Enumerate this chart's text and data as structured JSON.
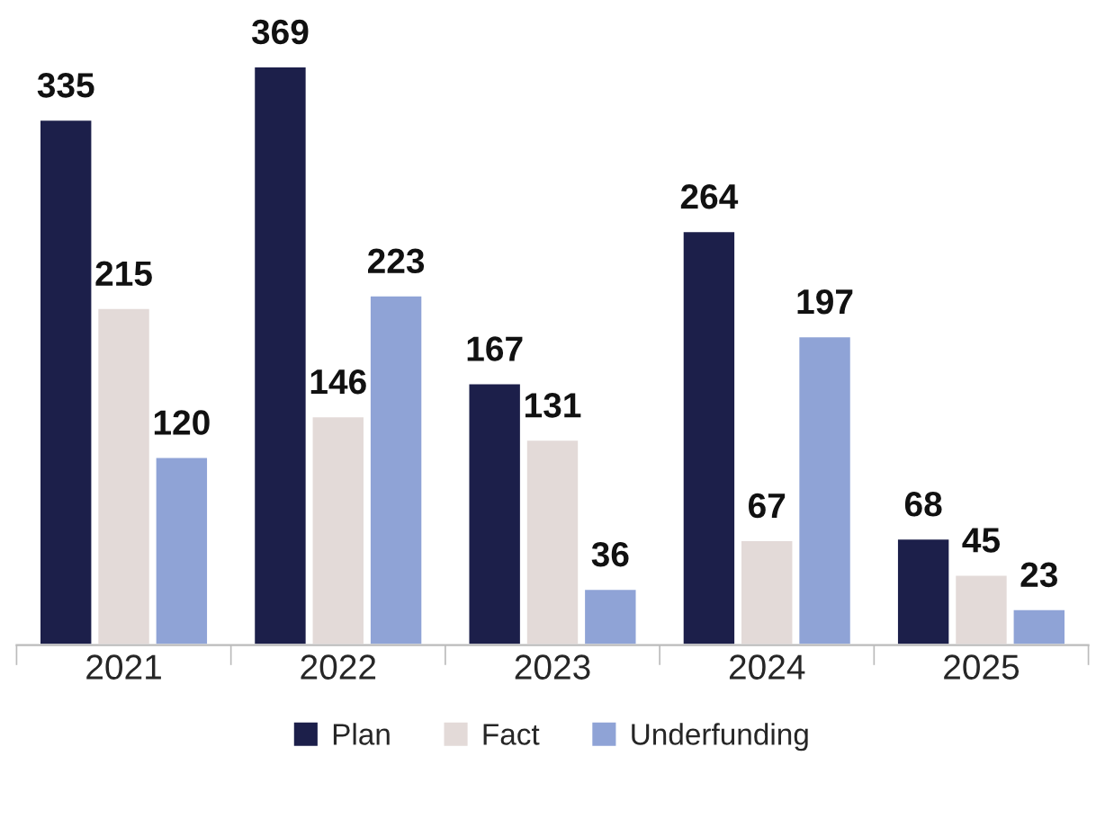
{
  "chart_data": {
    "type": "bar",
    "categories": [
      "2021",
      "2022",
      "2023",
      "2024",
      "2025"
    ],
    "series": [
      {
        "name": "Plan",
        "color": "#1c1f4a",
        "values": [
          335,
          369,
          167,
          264,
          68
        ]
      },
      {
        "name": "Fact",
        "color": "#e3dad8",
        "values": [
          215,
          146,
          131,
          67,
          45
        ]
      },
      {
        "name": "Underfunding",
        "color": "#8fa3d6",
        "values": [
          120,
          223,
          36,
          197,
          23
        ]
      }
    ],
    "data_labels": true,
    "legend": "bottom",
    "grid": false,
    "tick_labels": "x"
  }
}
